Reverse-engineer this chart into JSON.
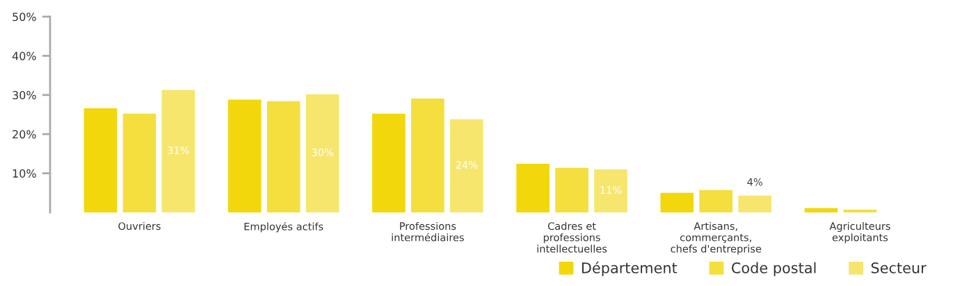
{
  "chart_data": {
    "type": "bar",
    "categories": [
      "Ouvriers",
      "Employés actifs",
      "Professions\nintermédiaires",
      "Cadres et\nprofessions\nintellectuelles",
      "Artisans,\ncommerçants,\nchefs d'entreprise",
      "Agriculteurs\nexploitants"
    ],
    "series": [
      {
        "name": "Département",
        "color": "#f2d70c",
        "values": [
          26.6,
          28.8,
          25.2,
          12.4,
          5.0,
          1.1
        ]
      },
      {
        "name": "Code postal",
        "color": "#f4df3e",
        "values": [
          25.2,
          28.4,
          29.1,
          11.4,
          5.7,
          0.7
        ]
      },
      {
        "name": "Secteur",
        "color": "#f6e66e",
        "values": [
          31.3,
          30.2,
          23.8,
          11.0,
          4.3,
          null
        ],
        "value_labels": [
          "31%",
          "30%",
          "24%",
          "11%",
          "4%",
          null
        ]
      }
    ],
    "ylim": [
      0,
      50
    ],
    "yticks": [
      {
        "value": 10,
        "label": "10%"
      },
      {
        "value": 20,
        "label": "20%"
      },
      {
        "value": 30,
        "label": "30%"
      },
      {
        "value": 40,
        "label": "40%"
      },
      {
        "value": 50,
        "label": "50%"
      }
    ],
    "grid": false,
    "legend": "bottom right"
  }
}
